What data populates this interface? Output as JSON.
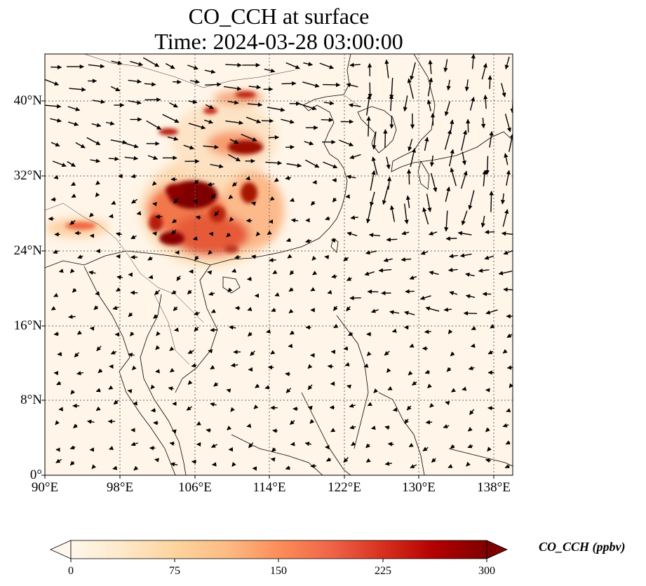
{
  "title": {
    "line1": "CO_CCH at surface",
    "line2": "Time: 2024-03-28 03:00:00"
  },
  "map": {
    "region": "East and Southeast Asia",
    "lon_range": [
      90,
      140
    ],
    "lat_range": [
      0,
      45
    ],
    "gridlines": true,
    "lat_ticks": [
      "40°N",
      "32°N",
      "24°N",
      "16°N",
      "8°N",
      "0°"
    ],
    "lon_ticks": [
      "90°E",
      "98°E",
      "106°E",
      "114°E",
      "122°E",
      "130°E",
      "138°E"
    ],
    "field": "CO_CCH concentration (ppbv)",
    "high_concentration_area": "Southwest China / Sichuan Basin, max ≥ 300 ppbv",
    "vectors": "surface wind arrows"
  },
  "colorbar": {
    "label": "CO_CCH (ppbv)",
    "ticks": [
      "0",
      "75",
      "150",
      "225",
      "300"
    ],
    "colormap": [
      "#fff7ec",
      "#fee8c8",
      "#fdd49e",
      "#fdbb84",
      "#fc8d59",
      "#ef6548",
      "#d7301f",
      "#b30000",
      "#7f0000"
    ],
    "extend": "both"
  }
}
